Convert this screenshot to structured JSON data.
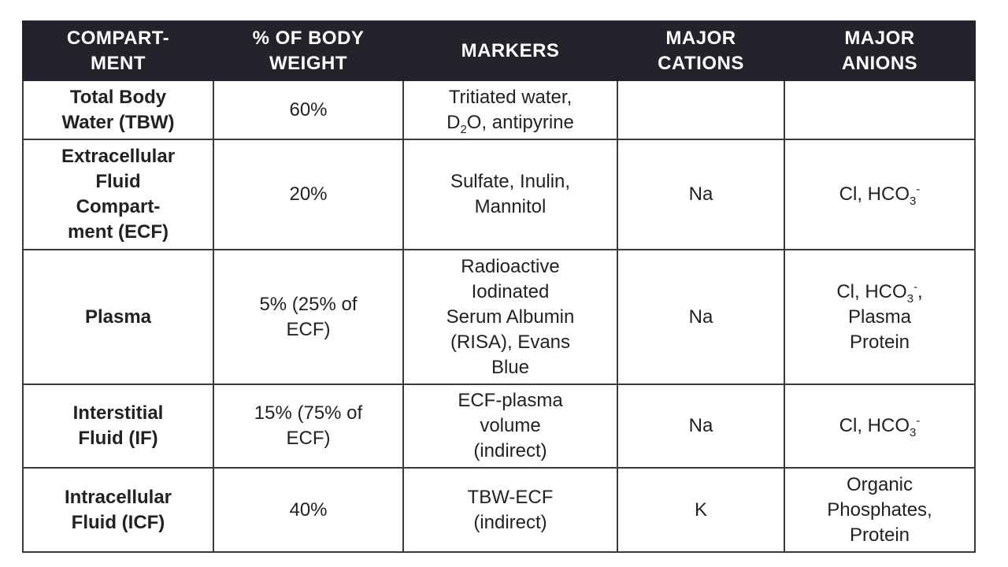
{
  "headers": [
    "COMPART-\nMENT",
    "% OF BODY\nWEIGHT",
    "MARKERS",
    "MAJOR\nCATIONS",
    "MAJOR\nANIONS"
  ],
  "rows": [
    [
      [
        {
          "t": "Total Body\nWater (TBW)"
        }
      ],
      [
        {
          "t": "60%"
        }
      ],
      [
        {
          "t": "Tritiated water,\nD"
        },
        {
          "sub": "2"
        },
        {
          "t": "O, antipyrine"
        }
      ],
      [],
      []
    ],
    [
      [
        {
          "t": "Extracellular\nFluid\nCompart-\nment (ECF)"
        }
      ],
      [
        {
          "t": "20%"
        }
      ],
      [
        {
          "t": "Sulfate, Inulin,\nMannitol"
        }
      ],
      [
        {
          "t": "Na"
        }
      ],
      [
        {
          "t": "Cl, HCO"
        },
        {
          "sub": "3"
        },
        {
          "sup": "-"
        }
      ]
    ],
    [
      [
        {
          "t": "Plasma"
        }
      ],
      [
        {
          "t": "5% (25% of\nECF)"
        }
      ],
      [
        {
          "t": "Radioactive\nIodinated\nSerum Albumin\n(RISA), Evans\nBlue"
        }
      ],
      [
        {
          "t": "Na"
        }
      ],
      [
        {
          "t": "Cl, HCO"
        },
        {
          "sub": "3"
        },
        {
          "sup": "-"
        },
        {
          "t": ",\nPlasma\nProtein"
        }
      ]
    ],
    [
      [
        {
          "t": "Interstitial\nFluid (IF)"
        }
      ],
      [
        {
          "t": "15% (75% of\nECF)"
        }
      ],
      [
        {
          "t": "ECF-plasma\nvolume\n(indirect)"
        }
      ],
      [
        {
          "t": "Na"
        }
      ],
      [
        {
          "t": "Cl, HCO"
        },
        {
          "sub": "3"
        },
        {
          "sup": "-"
        }
      ]
    ],
    [
      [
        {
          "t": "Intracellular\nFluid (ICF)"
        }
      ],
      [
        {
          "t": "40%"
        }
      ],
      [
        {
          "t": "TBW-ECF\n(indirect)"
        }
      ],
      [
        {
          "t": "K"
        }
      ],
      [
        {
          "t": "Organic\nPhosphates,\nProtein"
        }
      ]
    ]
  ],
  "colors": {
    "header_bg": "#24232b",
    "header_text": "#ffffff",
    "border": "#3a3a3a"
  }
}
